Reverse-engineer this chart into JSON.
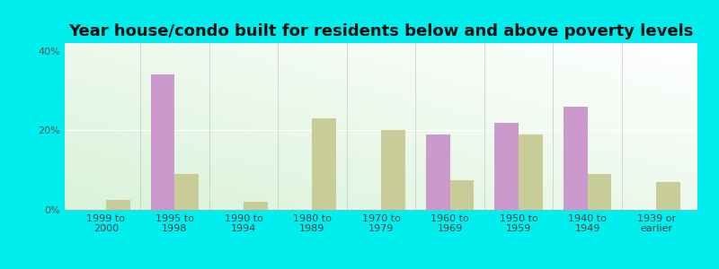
{
  "title": "Year house/condo built for residents below and above poverty levels",
  "categories": [
    "1999 to\n2000",
    "1995 to\n1998",
    "1990 to\n1994",
    "1980 to\n1989",
    "1970 to\n1979",
    "1960 to\n1969",
    "1950 to\n1959",
    "1940 to\n1949",
    "1939 or\nearlier"
  ],
  "below_poverty": [
    0,
    34,
    0,
    0,
    0,
    19,
    22,
    26,
    0
  ],
  "above_poverty": [
    2.5,
    9,
    2,
    23,
    20,
    7.5,
    19,
    9,
    7
  ],
  "below_color": "#cc99cc",
  "above_color": "#c8cc99",
  "background_color": "#00eeee",
  "ylim": [
    0,
    42
  ],
  "yticks": [
    0,
    20,
    40
  ],
  "ytick_labels": [
    "0%",
    "20%",
    "40%"
  ],
  "bar_width": 0.35,
  "title_fontsize": 13,
  "tick_fontsize": 8,
  "legend_fontsize": 9
}
